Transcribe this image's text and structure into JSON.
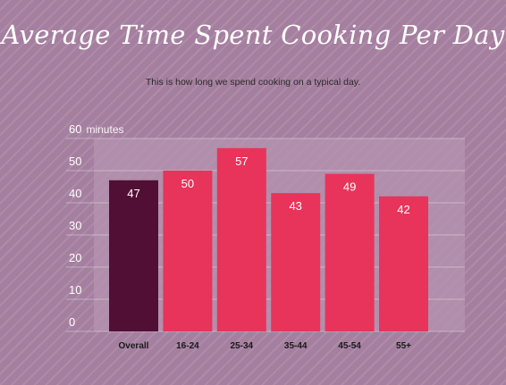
{
  "header": {
    "title": "Average Time Spent Cooking Per Day",
    "subtitle": "This is how long we spend cooking on a typical day."
  },
  "colors": {
    "background": "#a57f9f",
    "plot_area": "#b593af",
    "overall_bar": "#520f35",
    "age_bar": "#e8345a"
  },
  "chart_data": {
    "type": "bar",
    "title": "Average Time Spent Cooking Per Day",
    "subtitle": "This is how long we spend cooking on a typical day.",
    "categories": [
      "Overall",
      "16-24",
      "25-34",
      "35-44",
      "45-54",
      "55+"
    ],
    "values": [
      47,
      50,
      57,
      43,
      49,
      42
    ],
    "bar_colors": [
      "#520f35",
      "#e8345a",
      "#e8345a",
      "#e8345a",
      "#e8345a",
      "#e8345a"
    ],
    "ylim": [
      0,
      60
    ],
    "yticks": [
      0,
      10,
      20,
      30,
      40,
      50,
      60
    ],
    "ytick_labels": [
      "0",
      "10",
      "20",
      "30",
      "40",
      "50",
      "60"
    ],
    "yunit": "minutes",
    "grid": true,
    "data_labels": [
      "47",
      "50",
      "57",
      "43",
      "49",
      "42"
    ]
  }
}
